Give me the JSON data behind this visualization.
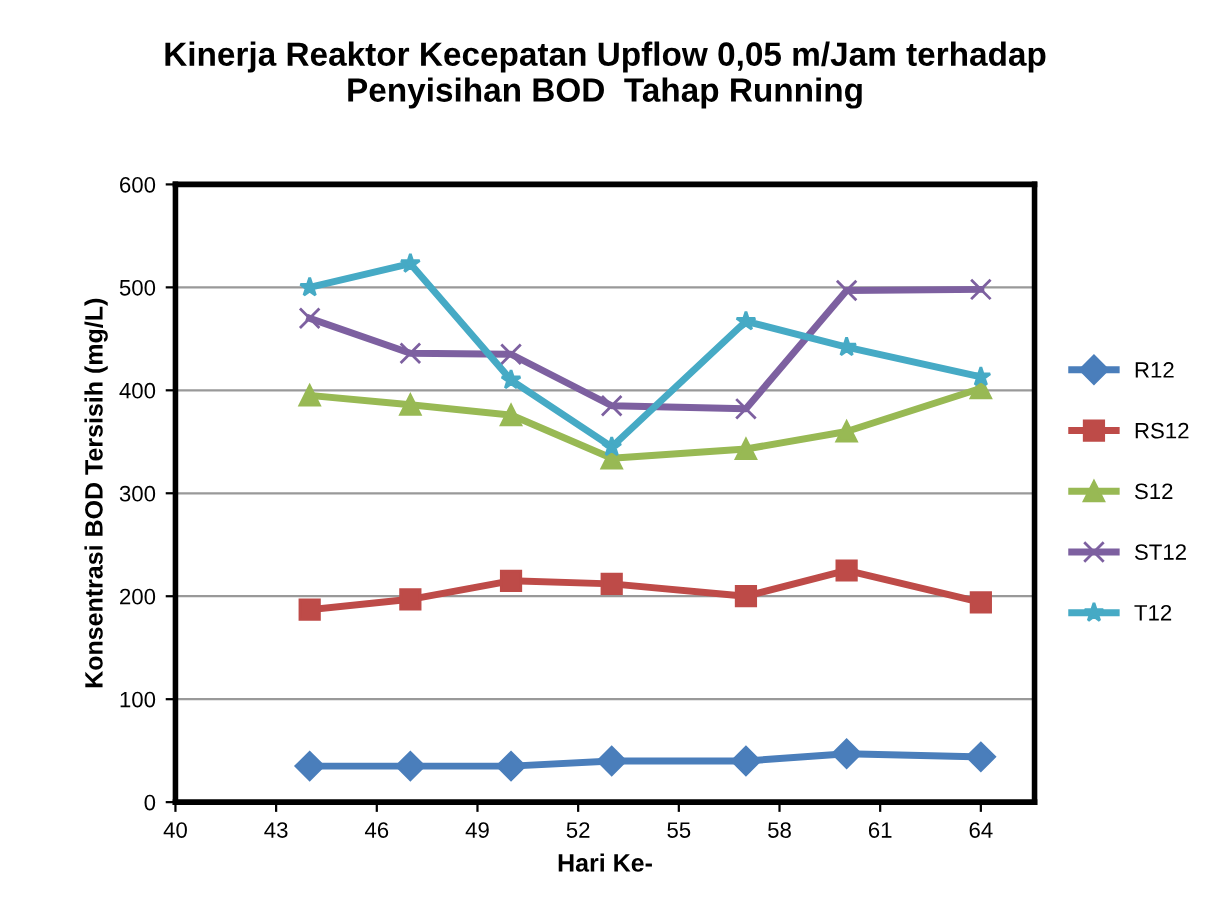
{
  "chart_data": {
    "type": "line",
    "title": "Kinerja Reaktor Kecepatan Upflow 0,05 m/Jam terhadap\nPenyisihan BOD  Tahap Running",
    "xlabel": "Hari Ke-",
    "ylabel": "Konsentrasi BOD Tersisih (mg/L)",
    "x": [
      44,
      47,
      50,
      53,
      57,
      60,
      64
    ],
    "series": [
      {
        "name": "R12",
        "color": "#4a7ebb",
        "marker": "diamond",
        "values": [
          35,
          35,
          35,
          40,
          40,
          47,
          44
        ]
      },
      {
        "name": "RS12",
        "color": "#be4b48",
        "marker": "square",
        "values": [
          187,
          197,
          215,
          212,
          200,
          225,
          194
        ]
      },
      {
        "name": "S12",
        "color": "#98b954",
        "marker": "triangle",
        "values": [
          395,
          386,
          376,
          334,
          343,
          360,
          402
        ]
      },
      {
        "name": "ST12",
        "color": "#7d60a0",
        "marker": "cross",
        "values": [
          470,
          436,
          435,
          385,
          382,
          497,
          498
        ]
      },
      {
        "name": "T12",
        "color": "#46aac5",
        "marker": "star",
        "values": [
          500,
          523,
          410,
          345,
          467,
          442,
          413
        ]
      }
    ],
    "xlim": [
      40,
      65.6
    ],
    "xticks": [
      40,
      43,
      46,
      49,
      52,
      55,
      58,
      61,
      64
    ],
    "ylim": [
      0,
      600
    ],
    "yticks": [
      0,
      100,
      200,
      300,
      400,
      500,
      600
    ],
    "grid": "y",
    "legend": "right",
    "line_style": "solid"
  }
}
